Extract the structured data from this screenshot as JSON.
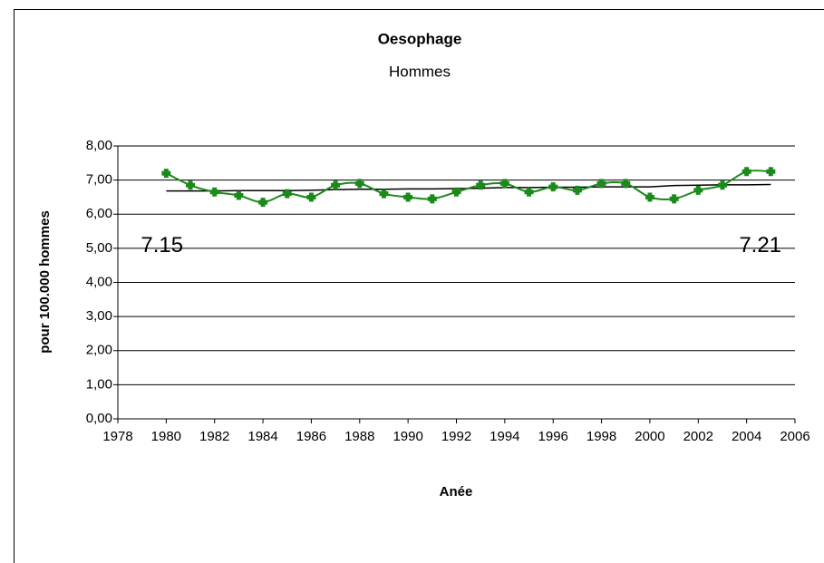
{
  "chart_data": {
    "type": "line",
    "title": "Oesophage",
    "subtitle": "Hommes",
    "xlabel": "Anée",
    "ylabel": "pour 100.000 hommes",
    "x": [
      1980,
      1981,
      1982,
      1983,
      1984,
      1985,
      1986,
      1987,
      1988,
      1989,
      1990,
      1991,
      1992,
      1993,
      1994,
      1995,
      1996,
      1997,
      1998,
      1999,
      2000,
      2001,
      2002,
      2003,
      2004,
      2005
    ],
    "series": [
      {
        "color": "#1a8a1a",
        "values": [
          7.2,
          6.85,
          6.65,
          6.55,
          6.35,
          6.6,
          6.5,
          6.85,
          6.9,
          6.6,
          6.5,
          6.45,
          6.65,
          6.85,
          6.9,
          6.65,
          6.8,
          6.7,
          6.9,
          6.9,
          6.5,
          6.45,
          6.7,
          6.85,
          7.25,
          7.25
        ]
      },
      {
        "color": "#000000",
        "values": [
          6.68,
          6.68,
          6.68,
          6.69,
          6.69,
          6.69,
          6.7,
          6.72,
          6.73,
          6.73,
          6.74,
          6.74,
          6.75,
          6.76,
          6.78,
          6.78,
          6.79,
          6.79,
          6.8,
          6.8,
          6.8,
          6.84,
          6.85,
          6.86,
          6.86,
          6.87
        ]
      }
    ],
    "annotations": [
      {
        "text": "7.15",
        "x": 1980
      },
      {
        "text": "7.21",
        "x": 2005
      }
    ],
    "xlim": [
      1978,
      2006
    ],
    "xticks": [
      1978,
      1980,
      1982,
      1984,
      1986,
      1988,
      1990,
      1992,
      1994,
      1996,
      1998,
      2000,
      2002,
      2004,
      2006
    ],
    "ylim": [
      0,
      8
    ],
    "yticks": [
      {
        "value": 0,
        "label": "0,00"
      },
      {
        "value": 1,
        "label": "1,00"
      },
      {
        "value": 2,
        "label": "2,00"
      },
      {
        "value": 3,
        "label": "3,00"
      },
      {
        "value": 4,
        "label": "4,00"
      },
      {
        "value": 5,
        "label": "5,00"
      },
      {
        "value": 6,
        "label": "6,00"
      },
      {
        "value": 7,
        "label": "7,00"
      },
      {
        "value": 8,
        "label": "8,00"
      }
    ],
    "grid": true
  }
}
